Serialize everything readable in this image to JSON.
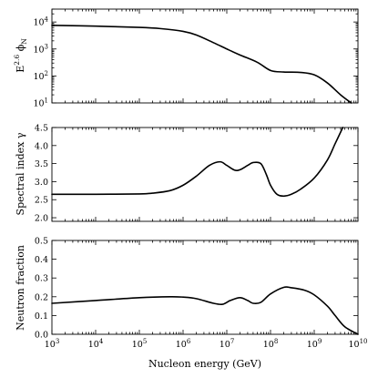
{
  "chart_data": [
    {
      "type": "line",
      "ylabel_main": "E",
      "ylabel_sup": "2.6",
      "ylabel_tail": " ϕ",
      "ylabel_sub": "N",
      "yscale": "log",
      "xscale": "log",
      "ylim": [
        10,
        30000
      ],
      "xlim": [
        1000,
        10000000000
      ],
      "yticks": [
        {
          "value": 10,
          "base": "10",
          "exp": "1"
        },
        {
          "value": 100,
          "base": "10",
          "exp": "2"
        },
        {
          "value": 1000,
          "base": "10",
          "exp": "3"
        },
        {
          "value": 10000,
          "base": "10",
          "exp": "4"
        }
      ],
      "series": [
        {
          "x": [
            1000.0,
            10000.0,
            100000.0,
            300000.0,
            1000000.0,
            2000000.0,
            5000000.0,
            10000000.0,
            20000000.0,
            50000000.0,
            100000000.0,
            200000000.0,
            500000000.0,
            1000000000.0,
            2000000000.0,
            4000000000.0,
            7000000000.0
          ],
          "y": [
            7500,
            7000,
            6300,
            5700,
            4500,
            3300,
            1700,
            1000,
            600,
            320,
            160,
            140,
            135,
            110,
            55,
            20,
            10
          ]
        }
      ]
    },
    {
      "type": "line",
      "ylabel": "Spectral index γ",
      "xscale": "log",
      "ylim": [
        1.9,
        4.5
      ],
      "xlim": [
        1000,
        10000000000
      ],
      "yticks": [
        "2.0",
        "2.5",
        "3.0",
        "3.5",
        "4.0",
        "4.5"
      ],
      "series": [
        {
          "x": [
            1000.0,
            10000.0,
            100000.0,
            200000.0,
            500000.0,
            1000000.0,
            2000000.0,
            4000000.0,
            7000000.0,
            10000000.0,
            15000000.0,
            20000000.0,
            30000000.0,
            40000000.0,
            60000000.0,
            80000000.0,
            100000000.0,
            140000000.0,
            200000000.0,
            300000000.0,
            500000000.0,
            1000000000.0,
            2000000000.0,
            3000000000.0,
            4500000000.0
          ],
          "y": [
            2.65,
            2.65,
            2.66,
            2.68,
            2.75,
            2.9,
            3.15,
            3.45,
            3.55,
            3.45,
            3.32,
            3.33,
            3.45,
            3.53,
            3.5,
            3.2,
            2.9,
            2.65,
            2.6,
            2.65,
            2.8,
            3.1,
            3.6,
            4.05,
            4.5
          ]
        }
      ]
    },
    {
      "type": "line",
      "ylabel": "Neutron fraction",
      "xlabel": "Nucleon energy (GeV)",
      "xscale": "log",
      "ylim": [
        0.0,
        0.5
      ],
      "xlim": [
        1000,
        10000000000
      ],
      "yticks": [
        "0.0",
        "0.1",
        "0.2",
        "0.3",
        "0.4",
        "0.5"
      ],
      "xticks": [
        {
          "base": "10",
          "exp": "3"
        },
        {
          "base": "10",
          "exp": "4"
        },
        {
          "base": "10",
          "exp": "5"
        },
        {
          "base": "10",
          "exp": "6"
        },
        {
          "base": "10",
          "exp": "7"
        },
        {
          "base": "10",
          "exp": "8"
        },
        {
          "base": "10",
          "exp": "9"
        },
        {
          "base": "10",
          "exp": "10"
        }
      ],
      "series": [
        {
          "x": [
            1000.0,
            10000.0,
            100000.0,
            500000.0,
            1000000.0,
            2000000.0,
            5000000.0,
            8000000.0,
            12000000.0,
            20000000.0,
            30000000.0,
            40000000.0,
            60000000.0,
            100000000.0,
            200000000.0,
            300000000.0,
            600000000.0,
            1000000000.0,
            2000000000.0,
            3000000000.0,
            5000000000.0,
            10000000000.0
          ],
          "y": [
            0.165,
            0.18,
            0.195,
            0.2,
            0.198,
            0.19,
            0.165,
            0.16,
            0.18,
            0.195,
            0.18,
            0.165,
            0.17,
            0.215,
            0.25,
            0.248,
            0.235,
            0.21,
            0.15,
            0.1,
            0.04,
            0.0
          ]
        }
      ]
    }
  ]
}
